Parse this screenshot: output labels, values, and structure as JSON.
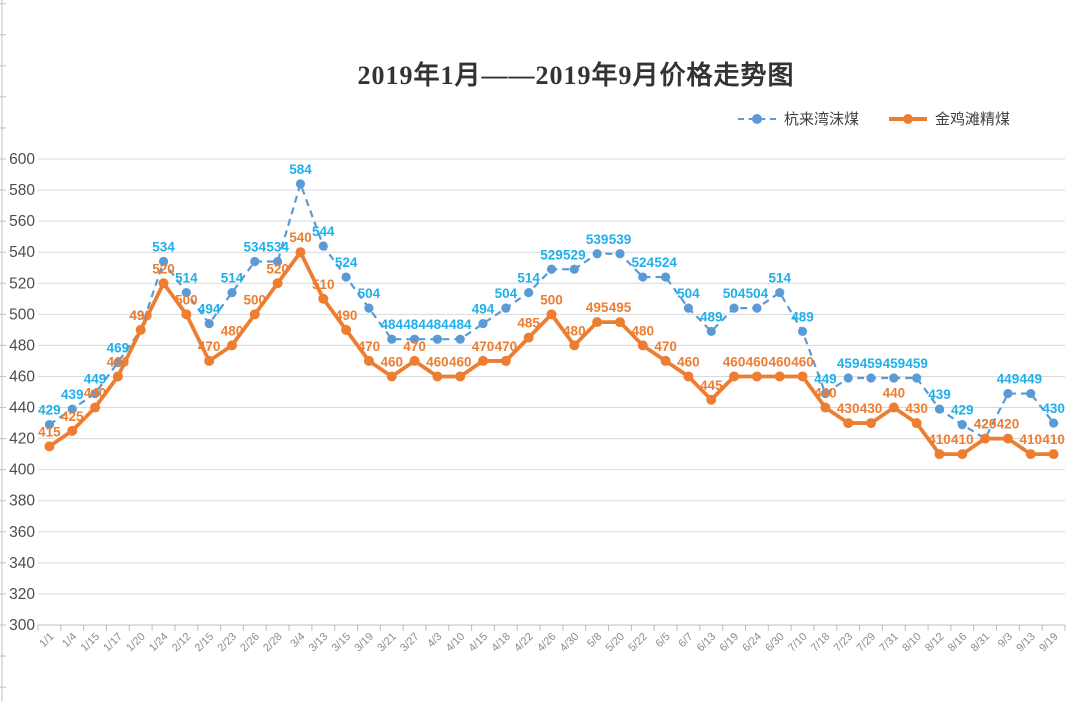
{
  "title": "2019年1月——2019年9月价格走势图",
  "legend": {
    "items": [
      {
        "label": "杭来湾沫煤",
        "marker": "dashed-line-dot",
        "color": "#5B9BD5"
      },
      {
        "label": "金鸡滩精煤",
        "marker": "solid-line-dot",
        "color": "#ED7D31"
      }
    ]
  },
  "chart_data": {
    "type": "line",
    "title": "2019年1月——2019年9月价格走势图",
    "categories": [
      "1/1",
      "1/4",
      "1/15",
      "1/17",
      "1/20",
      "1/24",
      "2/12",
      "2/15",
      "2/23",
      "2/26",
      "2/28",
      "3/4",
      "3/13",
      "3/15",
      "3/19",
      "3/21",
      "3/27",
      "4/3",
      "4/10",
      "4/15",
      "4/18",
      "4/22",
      "4/26",
      "4/30",
      "5/8",
      "5/20",
      "5/22",
      "6/5",
      "6/7",
      "6/13",
      "6/19",
      "6/24",
      "6/30",
      "7/10",
      "7/18",
      "7/23",
      "7/29",
      "7/31",
      "8/10",
      "8/12",
      "8/16",
      "8/31",
      "9/3",
      "9/13",
      "9/19"
    ],
    "series": [
      {
        "name": "杭来湾沫煤",
        "line_style": "dashed",
        "marker": "circle",
        "color": "#5B9BD5",
        "label_color": "#1FB0EC",
        "values": [
          429,
          439,
          449,
          469,
          490,
          534,
          514,
          494,
          514,
          534,
          534,
          584,
          544,
          524,
          504,
          484,
          484,
          484,
          484,
          494,
          504,
          514,
          529,
          529,
          539,
          539,
          524,
          524,
          504,
          489,
          504,
          504,
          514,
          489,
          449,
          459,
          459,
          459,
          459,
          439,
          429,
          420,
          449,
          449,
          430
        ]
      },
      {
        "name": "金鸡滩精煤",
        "line_style": "solid",
        "marker": "circle",
        "color": "#ED7D31",
        "label_color": "#ED7D31",
        "values": [
          415,
          425,
          440,
          460,
          490,
          520,
          500,
          470,
          480,
          500,
          520,
          540,
          510,
          490,
          470,
          460,
          470,
          460,
          460,
          470,
          470,
          485,
          500,
          480,
          495,
          495,
          480,
          470,
          460,
          445,
          460,
          460,
          460,
          460,
          440,
          430,
          430,
          440,
          430,
          410,
          410,
          420,
          420,
          410,
          410
        ]
      }
    ],
    "ylim": [
      300,
      600
    ],
    "ytick_step": 20,
    "yticks": [
      300,
      320,
      340,
      360,
      380,
      400,
      420,
      440,
      460,
      480,
      500,
      520,
      540,
      560,
      580,
      600
    ],
    "grid": true,
    "data_labels": true,
    "legend_position": "top-right",
    "colors": {
      "grid": "#D9D9D9",
      "axis": "#BFBFBF",
      "ylabel_text": "#4D4D4D",
      "xlabel_text": "#8C8C8C",
      "title_text": "#333333",
      "background": "#FFFFFF"
    }
  }
}
